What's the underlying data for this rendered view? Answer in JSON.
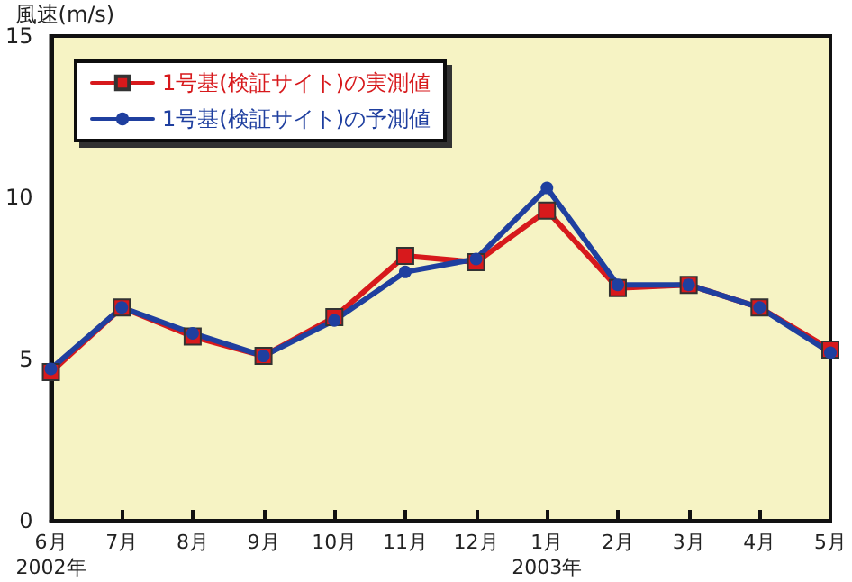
{
  "chart_data": {
    "type": "line",
    "ylabel": "風速(m/s)",
    "categories": [
      "6月\n2002年",
      "7月",
      "8月",
      "9月",
      "10月",
      "11月",
      "12月",
      "1月\n2003年",
      "2月",
      "3月",
      "4月",
      "5月"
    ],
    "series": [
      {
        "name": "1号基(検証サイト)の実測値",
        "color": "#d7191c",
        "marker": "square",
        "values": [
          4.6,
          6.6,
          5.7,
          5.1,
          6.3,
          8.2,
          8.0,
          9.6,
          7.2,
          7.3,
          6.6,
          5.3
        ]
      },
      {
        "name": "1号基(検証サイト)の予測値",
        "color": "#1f3f9f",
        "marker": "circle",
        "values": [
          4.7,
          6.6,
          5.8,
          5.1,
          6.2,
          7.7,
          8.1,
          10.3,
          7.3,
          7.3,
          6.6,
          5.2
        ]
      }
    ],
    "ylim": [
      0,
      15
    ],
    "yticks": [
      0,
      5,
      10,
      15
    ],
    "grid": false,
    "legend": "top left"
  }
}
